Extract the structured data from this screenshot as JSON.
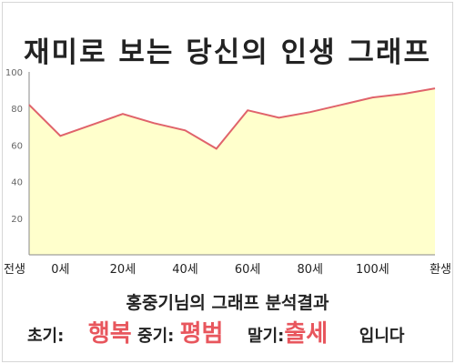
{
  "title": "재미로 보는 당신의 인생 그래프",
  "chart_data": {
    "type": "area",
    "title": "재미로 보는 당신의 인생 그래프",
    "xlabel": "",
    "ylabel": "",
    "x_tick_labels": [
      "전생",
      "0세",
      "20세",
      "40세",
      "60세",
      "80세",
      "100세",
      "환생"
    ],
    "y_ticks": [
      "20",
      "40",
      "60",
      "80",
      "100"
    ],
    "ylim": [
      0,
      100
    ],
    "grid": false,
    "series": [
      {
        "x": [
          "전생",
          "0세",
          "10세",
          "20세",
          "30세",
          "40세",
          "50세",
          "60세",
          "70세",
          "80세",
          "90세",
          "100세",
          "110세",
          "환생"
        ],
        "values": [
          82,
          65,
          71,
          77,
          72,
          68,
          58,
          79,
          75,
          78,
          82,
          86,
          88,
          91
        ]
      }
    ],
    "colors": {
      "line": "#e0636b",
      "fill": "#ffffcc",
      "axis": "#8a8a8a"
    }
  },
  "result": {
    "headline": "홍중기님의 그래프 분석결과",
    "early_label": "초기:",
    "early_value": "행복",
    "mid_label": "중기:",
    "mid_value": "평범",
    "late_label": "말기:",
    "late_value": "출세",
    "suffix": "입니다"
  }
}
